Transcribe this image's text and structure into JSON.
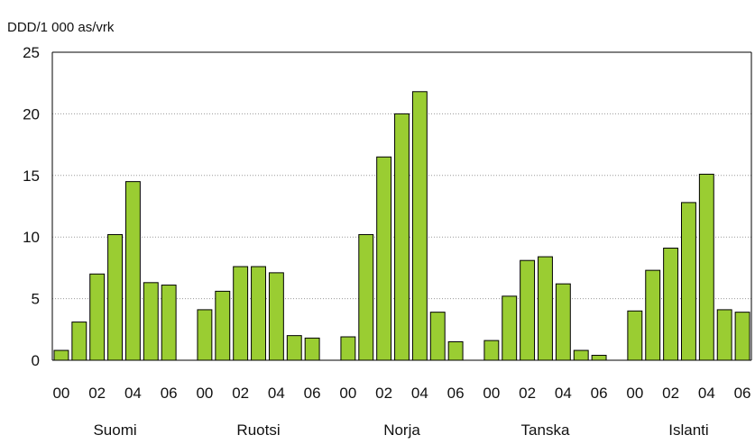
{
  "chart_data": {
    "type": "bar",
    "ylabel": "DDD/1 000 as/vrk",
    "ylim": [
      0,
      25
    ],
    "yticks": [
      "0",
      "5",
      "10",
      "15",
      "20",
      "25"
    ],
    "grid": "horizontal dotted",
    "bar_color": "#9ACD32",
    "bar_stroke": "#000000",
    "groups": [
      {
        "name": "Suomi",
        "values": [
          0.8,
          3.1,
          7.0,
          10.2,
          14.5,
          6.3,
          6.1
        ]
      },
      {
        "name": "Ruotsi",
        "values": [
          4.1,
          5.6,
          7.6,
          7.6,
          7.1,
          2.0,
          1.8
        ]
      },
      {
        "name": "Norja",
        "values": [
          1.9,
          10.2,
          16.5,
          20.0,
          21.8,
          3.9,
          1.5
        ]
      },
      {
        "name": "Tanska",
        "values": [
          1.6,
          5.2,
          8.1,
          8.4,
          6.2,
          0.8,
          0.4
        ]
      },
      {
        "name": "Islanti",
        "values": [
          4.0,
          7.3,
          9.1,
          12.8,
          15.1,
          4.1,
          3.9
        ]
      }
    ],
    "xtick_labels": [
      "00",
      "02",
      "04",
      "06"
    ]
  }
}
